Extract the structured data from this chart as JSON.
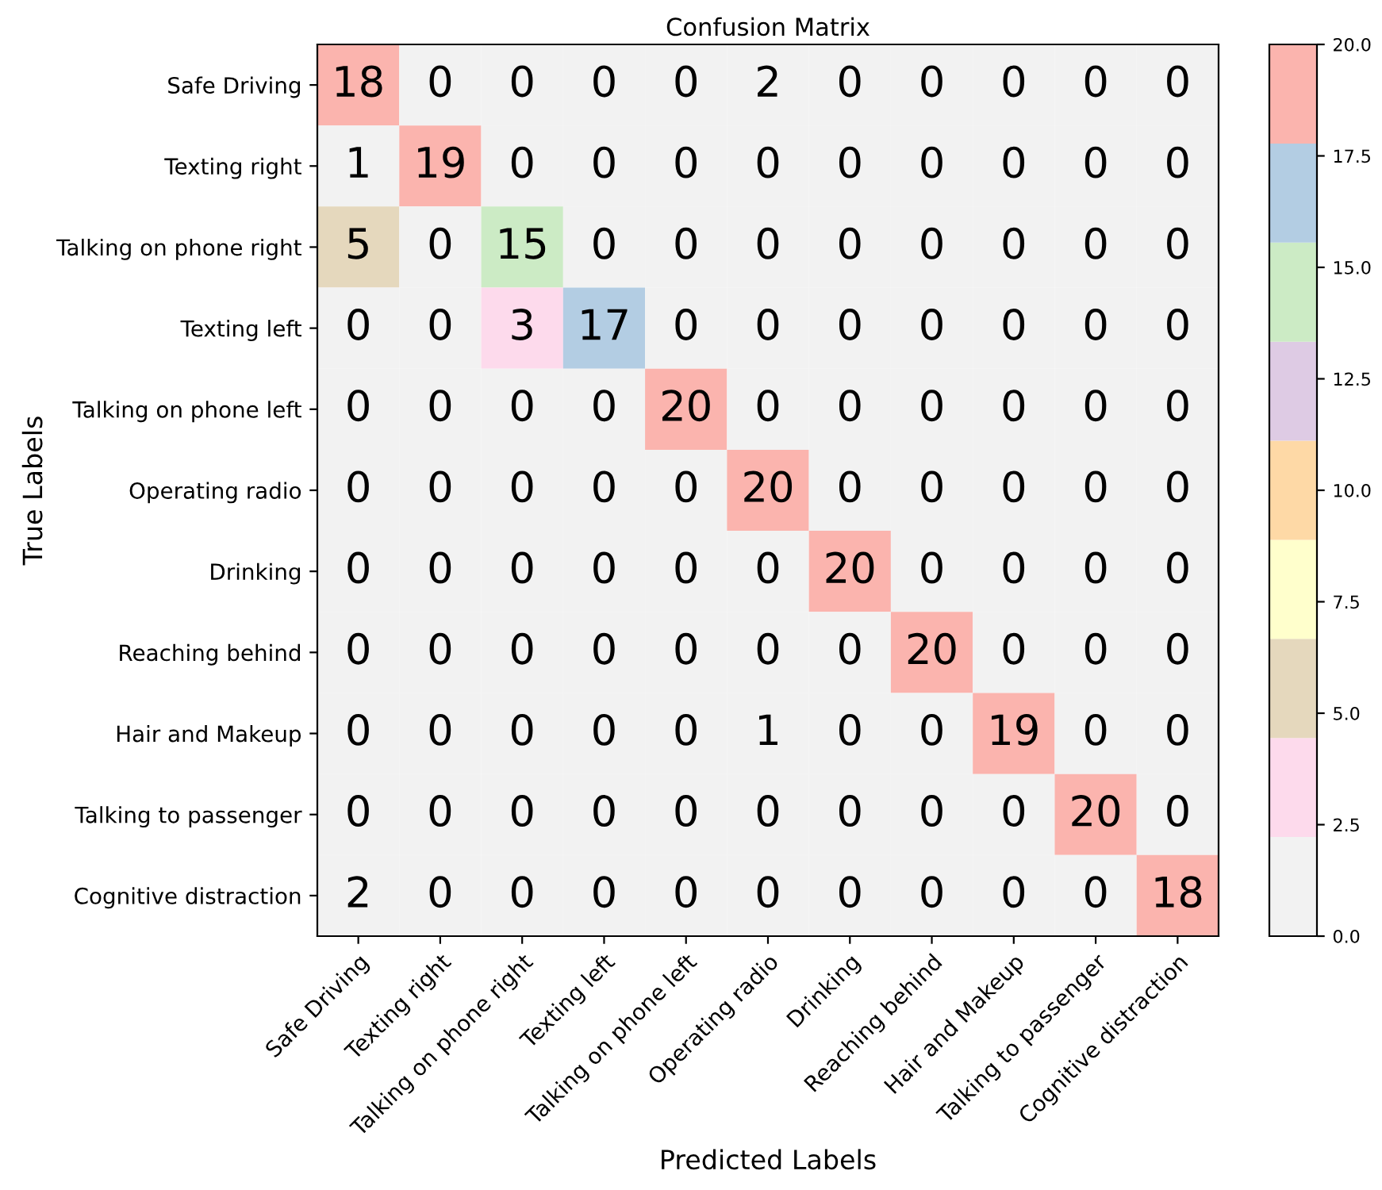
{
  "chart_data": {
    "type": "heatmap",
    "title": "Confusion Matrix",
    "xlabel": "Predicted Labels",
    "ylabel": "True Labels",
    "categories": [
      "Safe Driving",
      "Texting right",
      "Talking on phone right",
      "Texting left",
      "Talking on phone left",
      "Operating radio",
      "Drinking",
      "Reaching behind",
      "Hair and Makeup",
      "Talking to passenger",
      "Cognitive distraction"
    ],
    "y_categories": [
      "Safe Driving",
      "Texting right",
      "Talking on phone right",
      "Texting left",
      "Talking on phone left",
      "Operating radio",
      "Drinking",
      "Reaching behind",
      "Hair and Makeup",
      "Talking to passenger",
      "Cognitive distraction"
    ],
    "cells": [
      [
        18,
        0,
        0,
        0,
        0,
        2,
        0,
        0,
        0,
        0,
        0
      ],
      [
        1,
        19,
        0,
        0,
        0,
        0,
        0,
        0,
        0,
        0,
        0
      ],
      [
        5,
        0,
        15,
        0,
        0,
        0,
        0,
        0,
        0,
        0,
        0
      ],
      [
        0,
        0,
        3,
        17,
        0,
        0,
        0,
        0,
        0,
        0,
        0
      ],
      [
        0,
        0,
        0,
        0,
        20,
        0,
        0,
        0,
        0,
        0,
        0
      ],
      [
        0,
        0,
        0,
        0,
        0,
        20,
        0,
        0,
        0,
        0,
        0
      ],
      [
        0,
        0,
        0,
        0,
        0,
        0,
        20,
        0,
        0,
        0,
        0
      ],
      [
        0,
        0,
        0,
        0,
        0,
        0,
        0,
        20,
        0,
        0,
        0
      ],
      [
        0,
        0,
        0,
        0,
        0,
        1,
        0,
        0,
        19,
        0,
        0
      ],
      [
        0,
        0,
        0,
        0,
        0,
        0,
        0,
        0,
        0,
        20,
        0
      ],
      [
        2,
        0,
        0,
        0,
        0,
        0,
        0,
        0,
        0,
        0,
        18
      ]
    ],
    "colors": [
      "#f2f2f2",
      "#fddaec",
      "#e5d8bd",
      "#ffffcc",
      "#fed9a6",
      "#decbe4",
      "#ccebc5",
      "#b3cde3",
      "#fbb4ae"
    ],
    "clim": [
      0,
      20
    ],
    "cticks": [
      {
        "value": 0,
        "label": "0.0"
      },
      {
        "value": 2.5,
        "label": "2.5"
      },
      {
        "value": 5,
        "label": "5.0"
      },
      {
        "value": 7.5,
        "label": "7.5"
      },
      {
        "value": 10,
        "label": "10.0"
      },
      {
        "value": 12.5,
        "label": "12.5"
      },
      {
        "value": 15,
        "label": "15.0"
      },
      {
        "value": 17.5,
        "label": "17.5"
      },
      {
        "value": 20,
        "label": "20.0"
      }
    ],
    "data_labels": true
  }
}
